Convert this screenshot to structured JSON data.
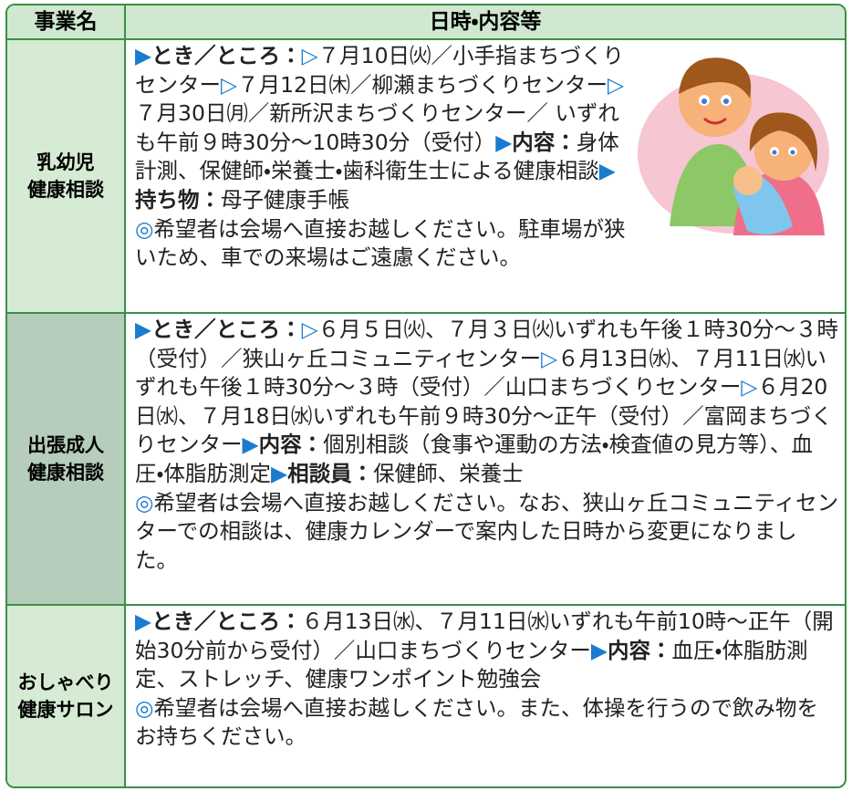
{
  "header": {
    "col1": "事業名",
    "col2": "日時・内容等"
  },
  "rows": [
    {
      "name": [
        "乳幼児",
        "健康相談"
      ],
      "content": [
        "▶",
        "とき／ところ：",
        "▷",
        "７月10日㈫／小手指まちづくりセンター",
        "▷",
        "７月12日㈭／柳瀬まちづくりセンター",
        "▷",
        "７月30日㈪／新所沢まちづくりセンター／ いずれも午前９時30分～10時30分（受付）",
        "▶",
        "内容：",
        "身体計測、保健師・栄養士・歯科衛生士による健康相談",
        "▶",
        "持ち物：",
        "母子健康手帳"
      ],
      "note": [
        "◎",
        "希望者は会場へ直接お越しください。駐車場が狭いため、車での来場はご遠慮ください。"
      ]
    },
    {
      "name": [
        "出張成人",
        "健康相談"
      ],
      "content": [
        "▶",
        "とき／ところ：",
        "▷",
        "６月５日㈫、７月３日㈫いずれも午後１時30分～３時（受付）／狭山ヶ丘コミュニティセンター",
        "▷",
        "６月13日㈬、７月11日㈬いずれも午後１時30分～３時（受付）／山口まちづくりセンター",
        "▷",
        "６月20日㈬、７月18日㈬いずれも午前９時30分～正午（受付）／富岡まちづくりセンター",
        "▶",
        "内容：",
        "個別相談（食事や運動の方法・検査値の見方等）、血圧・体脂肪測定",
        "▶",
        "相談員：",
        "保健師、栄養士"
      ],
      "note": [
        "◎",
        "希望者は会場へ直接お越しください。なお、狭山ヶ丘コミュニティセンターでの相談は、健康カレンダーで案内した日時から変更になりました。"
      ]
    },
    {
      "name": [
        "おしゃべり",
        "健康サロン"
      ],
      "content": [
        "▶",
        "とき／ところ：",
        "６月13日㈬、７月11日㈬いずれも午前10時～正午（開始30分前から受付）／山口まちづくりセンター",
        "▶",
        "内容：",
        "血圧・体脂肪測定、ストレッチ、健康ワンポイント勉強会"
      ],
      "note": [
        "◎",
        "希望者は会場へ直接お越しください。また、体操を行うので飲み物をお持ちください。"
      ]
    }
  ]
}
